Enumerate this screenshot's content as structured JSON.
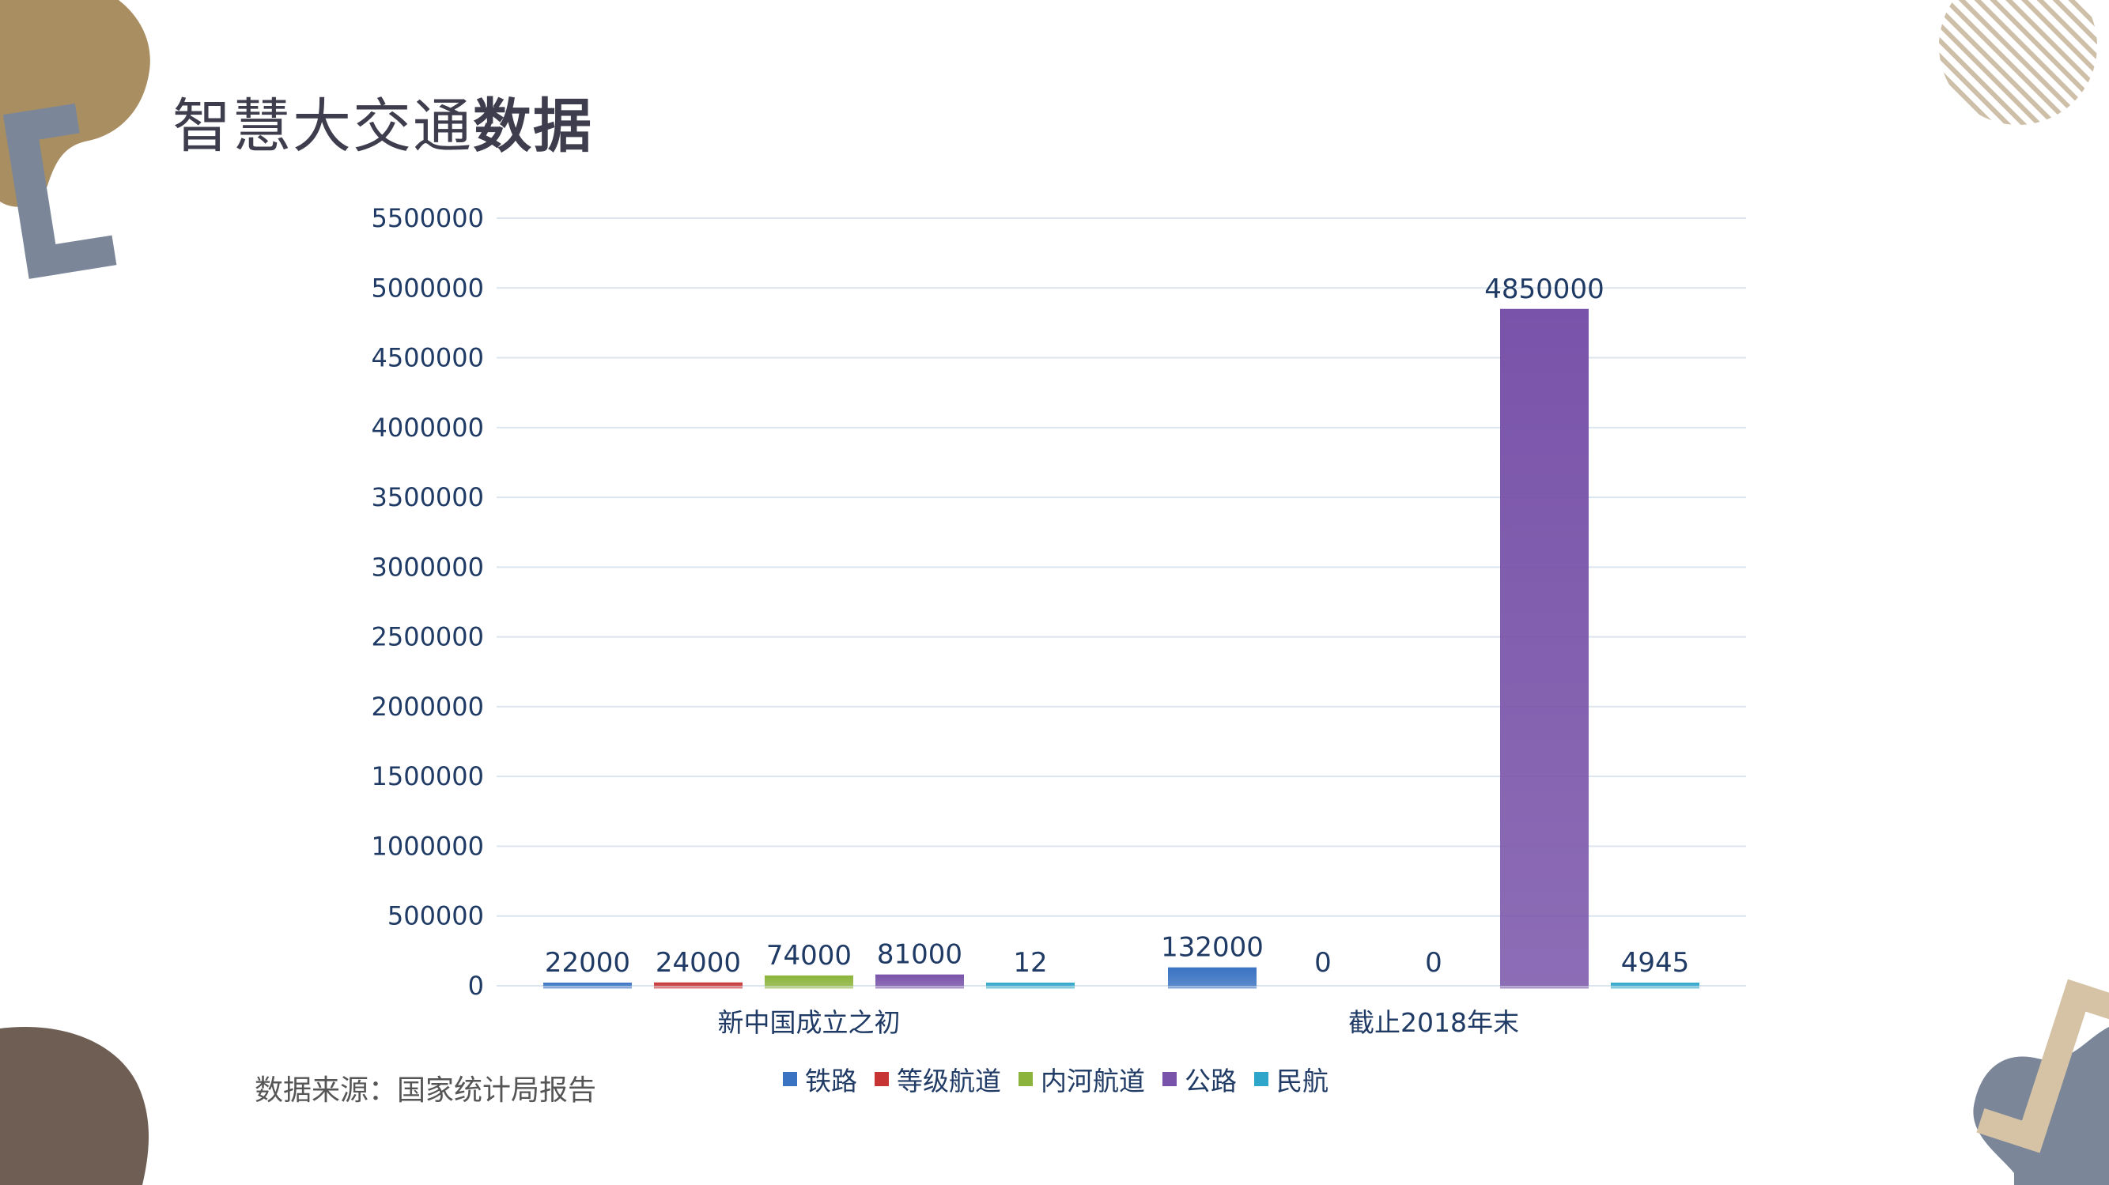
{
  "page": {
    "title_normal": "智慧大交通",
    "title_bold": "数据",
    "source_note": "数据来源：国家统计局报告"
  },
  "colors": {
    "tan": "#a98e62",
    "slate": "#7b8799",
    "brown": "#6f5e54",
    "beige": "#d6c3a6",
    "grid": "#dce4ee",
    "axis_text": "#1f3a64"
  },
  "chart_data": {
    "type": "bar",
    "title": "",
    "xlabel": "",
    "ylabel": "",
    "ylim": [
      0,
      5500000
    ],
    "yticks": [
      "0",
      "500000",
      "1000000",
      "1500000",
      "2000000",
      "2500000",
      "3000000",
      "3500000",
      "4000000",
      "4500000",
      "5000000",
      "5500000"
    ],
    "grid": true,
    "legend_position": "bottom",
    "categories": [
      "新中国成立之初",
      "截止2018年末"
    ],
    "series": [
      {
        "name": "铁路",
        "color": "#3a73c2",
        "values": [
          22000,
          132000
        ],
        "labels": [
          "22000",
          "132000"
        ]
      },
      {
        "name": "等级航道",
        "color": "#c63434",
        "values": [
          24000,
          0
        ],
        "labels": [
          "24000",
          "0"
        ]
      },
      {
        "name": "内河航道",
        "color": "#8cb43c",
        "values": [
          74000,
          0
        ],
        "labels": [
          "74000",
          "0"
        ]
      },
      {
        "name": "公路",
        "color": "#7953a9",
        "values": [
          81000,
          4850000
        ],
        "labels": [
          "81000",
          "4850000"
        ]
      },
      {
        "name": "民航",
        "color": "#2ea6c9",
        "values": [
          12,
          4945
        ],
        "labels": [
          "12",
          "4945"
        ]
      }
    ]
  }
}
